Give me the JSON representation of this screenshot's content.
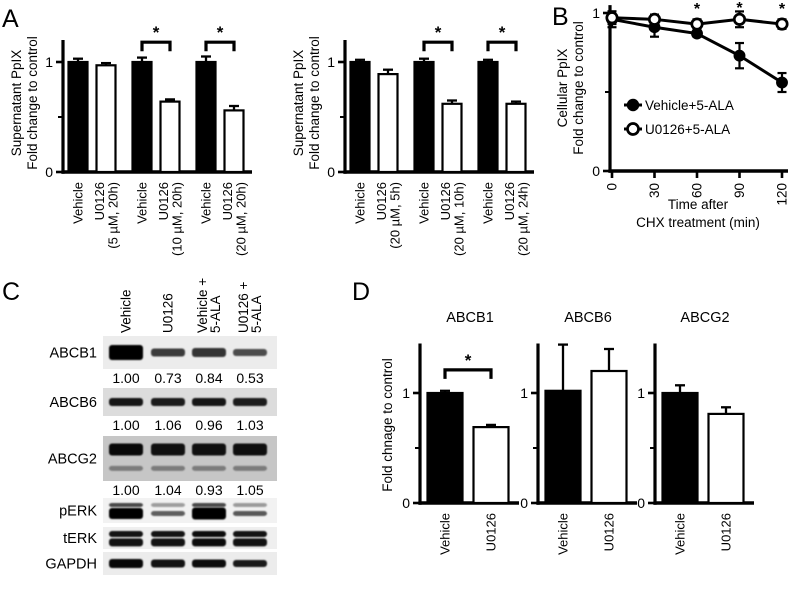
{
  "figure": {
    "bg": "#ffffff",
    "ink": "#000000",
    "panel_labels": {
      "a": "A",
      "b": "B",
      "c": "C",
      "d": "D"
    }
  },
  "chart_data": [
    {
      "id": "a1",
      "panel": "A",
      "type": "bar",
      "ylabel_lines": [
        "Supernatant PpIX",
        "Fold change to control"
      ],
      "ylim": [
        0,
        1.2
      ],
      "yticks": [
        0,
        1
      ],
      "categories": [
        "Vehicle",
        "U0126 (5 µM, 20h)",
        "Vehicle",
        "U0126 (10 µM, 20h)",
        "Vehicle",
        "U0126 (20 µM, 20h)"
      ],
      "category_lines": [
        [
          "Vehicle"
        ],
        [
          "U0126",
          "(5 µM, 20h)"
        ],
        [
          "Vehicle"
        ],
        [
          "U0126",
          "(10 µM, 20h)"
        ],
        [
          "Vehicle"
        ],
        [
          "U0126",
          "(20 µM, 20h)"
        ]
      ],
      "values": [
        1.0,
        0.97,
        1.0,
        0.64,
        1.0,
        0.56
      ],
      "errors": [
        0.03,
        0.02,
        0.04,
        0.02,
        0.05,
        0.04
      ],
      "fills": [
        "black",
        "white",
        "black",
        "white",
        "black",
        "white"
      ],
      "sig_brackets": [
        {
          "from": 2,
          "to": 3,
          "symbol": "*"
        },
        {
          "from": 4,
          "to": 5,
          "symbol": "*"
        }
      ]
    },
    {
      "id": "a2",
      "panel": "A",
      "type": "bar",
      "ylabel_lines": [
        "Supernatant PpIX",
        "Fold change to control"
      ],
      "ylim": [
        0,
        1.2
      ],
      "yticks": [
        0,
        1
      ],
      "categories": [
        "Vehicle",
        "U0126 (20 µM, 5h)",
        "Vehicle",
        "U0126 (20 µM, 10h)",
        "Vehicle",
        "U0126 (20 µM, 24h)"
      ],
      "category_lines": [
        [
          "Vehicle"
        ],
        [
          "U0126",
          "(20 µM, 5h)"
        ],
        [
          "Vehicle"
        ],
        [
          "U0126",
          "(20 µM, 10h)"
        ],
        [
          "Vehicle"
        ],
        [
          "U0126",
          "(20 µM, 24h)"
        ]
      ],
      "values": [
        1.0,
        0.89,
        1.0,
        0.62,
        1.0,
        0.62
      ],
      "errors": [
        0.02,
        0.04,
        0.03,
        0.03,
        0.02,
        0.02
      ],
      "fills": [
        "black",
        "white",
        "black",
        "white",
        "black",
        "white"
      ],
      "sig_brackets": [
        {
          "from": 2,
          "to": 3,
          "symbol": "*"
        },
        {
          "from": 4,
          "to": 5,
          "symbol": "*"
        }
      ]
    },
    {
      "id": "b",
      "panel": "B",
      "type": "line",
      "ylabel_lines": [
        "Cellular PpIX",
        "Fold change to control"
      ],
      "xlabel_lines": [
        "Time after",
        "CHX treatment (min)"
      ],
      "x": [
        0,
        30,
        60,
        90,
        120
      ],
      "ylim": [
        0,
        1.05
      ],
      "yticks": [
        0,
        1
      ],
      "series": [
        {
          "name": "Vehicle+5-ALA",
          "marker": "filled-circle",
          "values": [
            0.96,
            0.91,
            0.87,
            0.73,
            0.56
          ],
          "errors": [
            0.05,
            0.06,
            0.02,
            0.08,
            0.06
          ]
        },
        {
          "name": "U0126+5-ALA",
          "marker": "open-circle",
          "values": [
            0.97,
            0.96,
            0.93,
            0.96,
            0.93
          ],
          "errors": [
            0.04,
            0.03,
            0.03,
            0.05,
            0.03
          ]
        }
      ],
      "asterisks_at_x": [
        60,
        90,
        120
      ],
      "legend_position": "inside-left"
    },
    {
      "id": "d1",
      "panel": "D",
      "type": "bar",
      "title": "ABCB1",
      "ylabel_lines": [
        "Fold chnage to control"
      ],
      "ylim": [
        0,
        1.45
      ],
      "yticks": [
        0,
        1
      ],
      "categories": [
        "Vehicle",
        "U0126"
      ],
      "category_lines": [
        [
          "Vehicle"
        ],
        [
          "U0126"
        ]
      ],
      "values": [
        1.0,
        0.69
      ],
      "errors": [
        0.02,
        0.02
      ],
      "fills": [
        "black",
        "white"
      ],
      "sig_brackets": [
        {
          "from": 0,
          "to": 1,
          "symbol": "*"
        }
      ]
    },
    {
      "id": "d2",
      "panel": "D",
      "type": "bar",
      "title": "ABCB6",
      "ylim": [
        0,
        1.45
      ],
      "yticks": [
        0,
        1
      ],
      "categories": [
        "Vehicle",
        "U0126"
      ],
      "category_lines": [
        [
          "Vehicle"
        ],
        [
          "U0126"
        ]
      ],
      "values": [
        1.02,
        1.2
      ],
      "errors": [
        0.42,
        0.2
      ],
      "fills": [
        "black",
        "white"
      ],
      "sig_brackets": []
    },
    {
      "id": "d3",
      "panel": "D",
      "type": "bar",
      "title": "ABCG2",
      "ylim": [
        0,
        1.45
      ],
      "yticks": [
        0,
        1
      ],
      "categories": [
        "Vehicle",
        "U0126"
      ],
      "category_lines": [
        [
          "Vehicle"
        ],
        [
          "U0126"
        ]
      ],
      "values": [
        1.0,
        0.81
      ],
      "errors": [
        0.07,
        0.06
      ],
      "fills": [
        "black",
        "white"
      ],
      "sig_brackets": []
    }
  ],
  "blot": {
    "panel": "C",
    "lane_headers": [
      "Vehicle",
      "U0126",
      "Vehicle + 5-ALA",
      "U0126 + 5-ALA"
    ],
    "lane_headers_lines": [
      [
        "Vehicle"
      ],
      [
        "U0126"
      ],
      [
        "Vehicle +",
        "5-ALA"
      ],
      [
        "U0126 +",
        "5-ALA"
      ]
    ],
    "rows": [
      {
        "name": "ABCB1",
        "quantification": [
          "1.00",
          "0.73",
          "0.84",
          "0.53"
        ],
        "pattern": "single",
        "band_strengths": [
          1.0,
          0.55,
          0.6,
          0.42
        ],
        "band_heights": [
          15,
          8,
          9,
          7
        ],
        "bg": "#ececec"
      },
      {
        "name": "ABCB6",
        "quantification": [
          "1.00",
          "1.06",
          "0.96",
          "1.03"
        ],
        "pattern": "single",
        "band_strengths": [
          0.82,
          0.78,
          0.82,
          0.76
        ],
        "band_heights": [
          8,
          8,
          8,
          8
        ],
        "bg": "#dcdcdc"
      },
      {
        "name": "ABCG2",
        "quantification": [
          "1.00",
          "1.04",
          "0.93",
          "1.05"
        ],
        "pattern": "double",
        "band_strengths": [
          0.92,
          0.86,
          0.86,
          0.88
        ],
        "band_heights": [
          12,
          12,
          12,
          12
        ],
        "bg": "#c6c6c6"
      },
      {
        "name": "pERK",
        "quantification": null,
        "pattern": "doublet",
        "band_strengths": [
          1.0,
          0.3,
          1.0,
          0.32
        ],
        "band_heights": [
          11,
          5,
          12,
          5
        ],
        "bg": "#f2f2f2"
      },
      {
        "name": "tERK",
        "quantification": null,
        "pattern": "doublet-even",
        "band_strengths": [
          0.86,
          0.86,
          0.9,
          0.86
        ],
        "band_heights": [
          8,
          8,
          8,
          8
        ],
        "bg": "#efefef"
      },
      {
        "name": "GAPDH",
        "quantification": null,
        "pattern": "single",
        "band_strengths": [
          0.95,
          0.85,
          0.9,
          0.8
        ],
        "band_heights": [
          9,
          8,
          8,
          7
        ],
        "bg": "#ececec"
      }
    ]
  }
}
